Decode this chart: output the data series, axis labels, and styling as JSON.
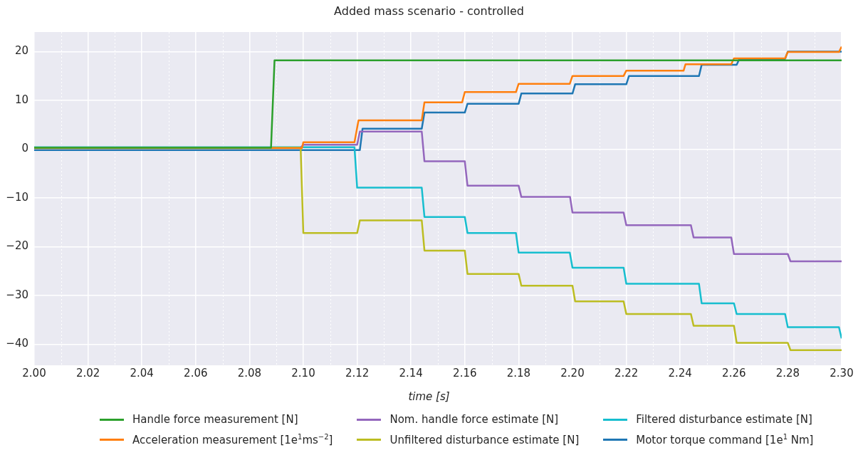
{
  "chart_data": {
    "type": "line",
    "title": "Added mass scenario - controlled",
    "xlabel": "time [s]",
    "xlim": [
      2.0,
      2.3
    ],
    "xticks": [
      {
        "value": 2.0,
        "label": "2.00"
      },
      {
        "value": 2.01,
        "label": null
      },
      {
        "value": 2.02,
        "label": "2.02"
      },
      {
        "value": 2.03,
        "label": null
      },
      {
        "value": 2.04,
        "label": "2.04"
      },
      {
        "value": 2.05,
        "label": null
      },
      {
        "value": 2.06,
        "label": "2.06"
      },
      {
        "value": 2.07,
        "label": null
      },
      {
        "value": 2.08,
        "label": "2.08"
      },
      {
        "value": 2.09,
        "label": null
      },
      {
        "value": 2.1,
        "label": "2.10"
      },
      {
        "value": 2.11,
        "label": null
      },
      {
        "value": 2.12,
        "label": "2.12"
      },
      {
        "value": 2.13,
        "label": null
      },
      {
        "value": 2.14,
        "label": "2.14"
      },
      {
        "value": 2.15,
        "label": null
      },
      {
        "value": 2.16,
        "label": "2.16"
      },
      {
        "value": 2.17,
        "label": null
      },
      {
        "value": 2.18,
        "label": "2.18"
      },
      {
        "value": 2.19,
        "label": null
      },
      {
        "value": 2.2,
        "label": "2.20"
      },
      {
        "value": 2.21,
        "label": null
      },
      {
        "value": 2.22,
        "label": "2.22"
      },
      {
        "value": 2.23,
        "label": null
      },
      {
        "value": 2.24,
        "label": "2.24"
      },
      {
        "value": 2.25,
        "label": null
      },
      {
        "value": 2.26,
        "label": "2.26"
      },
      {
        "value": 2.27,
        "label": null
      },
      {
        "value": 2.28,
        "label": "2.28"
      },
      {
        "value": 2.29,
        "label": null
      },
      {
        "value": 2.3,
        "label": "2.30"
      }
    ],
    "ylim": [
      -44.3,
      24
    ],
    "yticks": [
      {
        "value": -40,
        "label": "−40"
      },
      {
        "value": -30,
        "label": "−30"
      },
      {
        "value": -20,
        "label": "−20"
      },
      {
        "value": -10,
        "label": "−10"
      },
      0,
      10,
      20
    ],
    "grid": true,
    "legend": "bottom",
    "marker": "none",
    "line_style": "solid",
    "series": [
      {
        "name": "Handle force measurement [N]",
        "color": "#2ca02c",
        "x": [
          2.0,
          2.088,
          2.0893,
          2.3
        ],
        "values": [
          0.3,
          0.3,
          18.2,
          18.2
        ]
      },
      {
        "name": "Acceleration measurement [1e$^{1}$ms$^{−2}$]",
        "color": "#ff7f0e",
        "x": [
          2.0,
          2.0995,
          2.1,
          2.119,
          2.1205,
          2.144,
          2.145,
          2.159,
          2.16,
          2.179,
          2.18,
          2.199,
          2.2,
          2.219,
          2.22,
          2.2413,
          2.242,
          2.259,
          2.26,
          2.279,
          2.28,
          2.299,
          2.3
        ],
        "values": [
          0.2,
          0.2,
          1.4,
          1.4,
          5.9,
          5.9,
          9.6,
          9.6,
          11.7,
          11.7,
          13.4,
          13.4,
          15.0,
          15.0,
          16.1,
          16.1,
          17.4,
          17.4,
          18.6,
          18.6,
          19.9,
          19.9,
          21
        ]
      },
      {
        "name": "Nom. handle force estimate [N]",
        "color": "#9467bd",
        "x": [
          2.099,
          2.1,
          2.12,
          2.121,
          2.144,
          2.145,
          2.16,
          2.161,
          2.18,
          2.181,
          2.1991,
          2.2,
          2.219,
          2.22,
          2.244,
          2.245,
          2.259,
          2.26,
          2.28,
          2.281,
          2.3
        ],
        "values": [
          0.3,
          0.9,
          0.9,
          3.6,
          3.6,
          -2.5,
          -2.5,
          -7.5,
          -7.5,
          -9.8,
          -9.8,
          -13.0,
          -13.0,
          -15.6,
          -15.6,
          -18.1,
          -18.1,
          -21.5,
          -21.5,
          -23.0,
          -23.0
        ]
      },
      {
        "name": "Unfiltered disturbance estimate [N]",
        "color": "#bcbd22",
        "x": [
          2.0,
          2.099,
          2.1,
          2.12,
          2.121,
          2.144,
          2.145,
          2.16,
          2.161,
          2.18,
          2.181,
          2.2,
          2.201,
          2.219,
          2.22,
          2.244,
          2.245,
          2.26,
          2.261,
          2.28,
          2.281,
          2.3
        ],
        "values": [
          0.3,
          0.3,
          -17.2,
          -17.2,
          -14.6,
          -14.6,
          -20.8,
          -20.8,
          -25.6,
          -25.6,
          -28.0,
          -28.0,
          -31.2,
          -31.2,
          -33.8,
          -33.8,
          -36.2,
          -36.2,
          -39.7,
          -39.7,
          -41.2,
          -41.2
        ]
      },
      {
        "name": "Filtered disturbance estimate [N]",
        "color": "#17becf",
        "x": [
          2.0,
          2.119,
          2.12,
          2.144,
          2.145,
          2.16,
          2.161,
          2.179,
          2.18,
          2.199,
          2.2,
          2.219,
          2.22,
          2.247,
          2.248,
          2.26,
          2.261,
          2.279,
          2.28,
          2.299,
          2.3
        ],
        "values": [
          0.4,
          0.4,
          -7.9,
          -7.9,
          -13.9,
          -13.9,
          -17.2,
          -17.2,
          -21.2,
          -21.2,
          -24.3,
          -24.3,
          -27.6,
          -27.6,
          -31.6,
          -31.6,
          -33.8,
          -33.8,
          -36.5,
          -36.5,
          -38.8
        ]
      },
      {
        "name": "Motor torque command [1e$^{1}$ Nm]",
        "color": "#1f77b4",
        "x": [
          2.0,
          2.121,
          2.122,
          2.144,
          2.145,
          2.16,
          2.161,
          2.18,
          2.181,
          2.2,
          2.201,
          2.22,
          2.221,
          2.247,
          2.248,
          2.261,
          2.262,
          2.279,
          2.28,
          2.3
        ],
        "values": [
          -0.2,
          -0.2,
          4.2,
          4.2,
          7.5,
          7.5,
          9.3,
          9.3,
          11.4,
          11.4,
          13.3,
          13.3,
          15.0,
          15.0,
          17.3,
          17.3,
          18.5,
          18.5,
          20.0,
          20.0
        ]
      }
    ]
  }
}
